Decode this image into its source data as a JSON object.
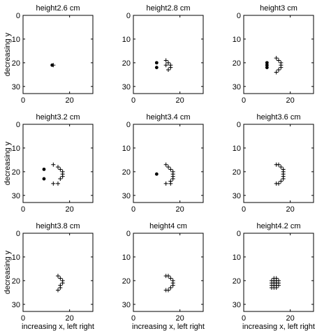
{
  "chart_data": [
    {
      "type": "scatter",
      "title": "height2.6 cm",
      "xlabel": "",
      "ylabel": "decreasing y",
      "xlim": [
        0,
        30
      ],
      "ylim": [
        0,
        33
      ],
      "y_inverted": true,
      "xticks": [
        "0",
        "20"
      ],
      "yticks": [
        "0",
        "10",
        "20",
        "30"
      ],
      "series": [
        {
          "marker": "dot",
          "points": [
            [
              12.5,
              21
            ]
          ]
        },
        {
          "marker": "plus",
          "points": [
            [
              13,
              21
            ]
          ]
        }
      ]
    },
    {
      "type": "scatter",
      "title": "height2.8 cm",
      "xlabel": "",
      "ylabel": "",
      "xlim": [
        0,
        30
      ],
      "ylim": [
        0,
        33
      ],
      "y_inverted": true,
      "xticks": [
        "0",
        "20"
      ],
      "yticks": [
        "0",
        "10",
        "20",
        "30"
      ],
      "series": [
        {
          "marker": "dot",
          "points": [
            [
              10,
              22
            ],
            [
              10,
              20
            ]
          ]
        },
        {
          "marker": "plus",
          "points": [
            [
              15,
              23
            ],
            [
              16,
              22
            ],
            [
              16,
              21
            ],
            [
              15,
              20
            ],
            [
              14,
              21
            ],
            [
              14,
              19
            ]
          ]
        }
      ]
    },
    {
      "type": "scatter",
      "title": "height3 cm",
      "xlabel": "",
      "ylabel": "",
      "xlim": [
        0,
        30
      ],
      "ylim": [
        0,
        33
      ],
      "y_inverted": true,
      "xticks": [
        "0",
        "20"
      ],
      "yticks": [
        "0",
        "10",
        "20",
        "30"
      ],
      "series": [
        {
          "marker": "dot",
          "points": [
            [
              10,
              22
            ],
            [
              10,
              21
            ],
            [
              10,
              20
            ]
          ]
        },
        {
          "marker": "plus",
          "points": [
            [
              14,
              24
            ],
            [
              15,
              23
            ],
            [
              16,
              22
            ],
            [
              16,
              21
            ],
            [
              16,
              20
            ],
            [
              15,
              19
            ],
            [
              14,
              18
            ]
          ]
        }
      ]
    },
    {
      "type": "scatter",
      "title": "height3.2 cm",
      "xlabel": "",
      "ylabel": "decreasing y",
      "xlim": [
        0,
        30
      ],
      "ylim": [
        0,
        33
      ],
      "y_inverted": true,
      "xticks": [
        "0",
        "20"
      ],
      "yticks": [
        "0",
        "10",
        "20",
        "30"
      ],
      "series": [
        {
          "marker": "dot",
          "points": [
            [
              9,
              23
            ],
            [
              9,
              19
            ]
          ]
        },
        {
          "marker": "plus",
          "points": [
            [
              13,
              25
            ],
            [
              15,
              25
            ],
            [
              16,
              23
            ],
            [
              17,
              22
            ],
            [
              17,
              21
            ],
            [
              17,
              20
            ],
            [
              16,
              19
            ],
            [
              15,
              18
            ],
            [
              13,
              17
            ]
          ]
        }
      ]
    },
    {
      "type": "scatter",
      "title": "height3.4 cm",
      "xlabel": "",
      "ylabel": "",
      "xlim": [
        0,
        30
      ],
      "ylim": [
        0,
        33
      ],
      "y_inverted": true,
      "xticks": [
        "0",
        "20"
      ],
      "yticks": [
        "0",
        "10",
        "20",
        "30"
      ],
      "series": [
        {
          "marker": "dot",
          "points": [
            [
              10,
              21
            ]
          ]
        },
        {
          "marker": "plus",
          "points": [
            [
              14,
              25
            ],
            [
              16,
              25
            ],
            [
              16,
              24
            ],
            [
              17,
              23
            ],
            [
              17,
              22
            ],
            [
              17,
              21
            ],
            [
              17,
              20
            ],
            [
              16,
              19
            ],
            [
              15,
              18
            ],
            [
              14,
              17
            ]
          ]
        }
      ]
    },
    {
      "type": "scatter",
      "title": "height3.6 cm",
      "xlabel": "",
      "ylabel": "",
      "xlim": [
        0,
        30
      ],
      "ylim": [
        0,
        33
      ],
      "y_inverted": true,
      "xticks": [
        "0",
        "20"
      ],
      "yticks": [
        "0",
        "10",
        "20",
        "30"
      ],
      "series": [
        {
          "marker": "plus",
          "points": [
            [
              14,
              25
            ],
            [
              15,
              25
            ],
            [
              16,
              24
            ],
            [
              17,
              23
            ],
            [
              17,
              22
            ],
            [
              17,
              21
            ],
            [
              17,
              20
            ],
            [
              17,
              19
            ],
            [
              16,
              18
            ],
            [
              15,
              17
            ],
            [
              14,
              17
            ]
          ]
        }
      ]
    },
    {
      "type": "scatter",
      "title": "height3.8 cm",
      "xlabel": "increasing x, left right",
      "ylabel": "decreasing y",
      "xlim": [
        0,
        30
      ],
      "ylim": [
        0,
        33
      ],
      "y_inverted": true,
      "xticks": [
        "0",
        "20"
      ],
      "yticks": [
        "0",
        "10",
        "20",
        "30"
      ],
      "series": [
        {
          "marker": "plus",
          "points": [
            [
              15,
              24
            ],
            [
              16,
              23
            ],
            [
              16,
              22
            ],
            [
              17,
              21
            ],
            [
              17,
              20
            ],
            [
              16,
              19
            ],
            [
              15,
              18
            ]
          ]
        }
      ]
    },
    {
      "type": "scatter",
      "title": "height4 cm",
      "xlabel": "increasing x, left right",
      "ylabel": "",
      "xlim": [
        0,
        30
      ],
      "ylim": [
        0,
        33
      ],
      "y_inverted": true,
      "xticks": [
        "0",
        "20"
      ],
      "yticks": [
        "0",
        "10",
        "20",
        "30"
      ],
      "series": [
        {
          "marker": "plus",
          "points": [
            [
              14,
              24
            ],
            [
              15,
              24
            ],
            [
              16,
              23
            ],
            [
              17,
              22
            ],
            [
              17,
              21
            ],
            [
              17,
              20
            ],
            [
              16,
              19
            ],
            [
              15,
              18
            ],
            [
              14,
              18
            ]
          ]
        }
      ]
    },
    {
      "type": "scatter",
      "title": "height4.2 cm",
      "xlabel": "increasing x, left right",
      "ylabel": "",
      "xlim": [
        0,
        30
      ],
      "ylim": [
        0,
        33
      ],
      "y_inverted": true,
      "xticks": [
        "0",
        "20"
      ],
      "yticks": [
        "0",
        "10",
        "20",
        "30"
      ],
      "series": [
        {
          "marker": "plus",
          "points": [
            [
              12,
              23
            ],
            [
              13,
              23
            ],
            [
              14,
              23
            ],
            [
              12,
              22
            ],
            [
              13,
              22
            ],
            [
              14,
              22
            ],
            [
              15,
              22
            ],
            [
              12,
              21
            ],
            [
              13,
              21
            ],
            [
              14,
              21
            ],
            [
              15,
              21
            ],
            [
              12,
              20
            ],
            [
              13,
              20
            ],
            [
              14,
              20
            ],
            [
              15,
              20
            ],
            [
              13,
              19
            ],
            [
              14,
              19
            ]
          ]
        }
      ]
    }
  ]
}
